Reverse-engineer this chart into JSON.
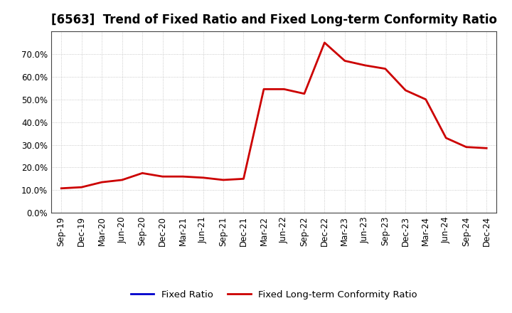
{
  "title": "[6563]  Trend of Fixed Ratio and Fixed Long-term Conformity Ratio",
  "x_labels": [
    "Sep-19",
    "Dec-19",
    "Mar-20",
    "Jun-20",
    "Sep-20",
    "Dec-20",
    "Mar-21",
    "Jun-21",
    "Sep-21",
    "Dec-21",
    "Mar-22",
    "Jun-22",
    "Sep-22",
    "Dec-22",
    "Mar-23",
    "Jun-23",
    "Sep-23",
    "Dec-23",
    "Mar-24",
    "Jun-24",
    "Sep-24",
    "Dec-24"
  ],
  "fixed_ratio": [
    null,
    null,
    null,
    null,
    null,
    null,
    null,
    null,
    null,
    null,
    null,
    null,
    null,
    null,
    null,
    null,
    null,
    null,
    null,
    null,
    null,
    null
  ],
  "fixed_lt_ratio": [
    10.8,
    11.3,
    13.5,
    14.5,
    17.5,
    16.0,
    16.0,
    15.5,
    14.5,
    15.0,
    54.5,
    54.5,
    52.5,
    75.0,
    67.0,
    65.0,
    63.5,
    54.0,
    50.0,
    33.0,
    29.0,
    28.5
  ],
  "fixed_ratio_color": "#0000cc",
  "fixed_lt_ratio_color": "#cc0000",
  "ylim": [
    0,
    80
  ],
  "yticks": [
    0.0,
    10.0,
    20.0,
    30.0,
    40.0,
    50.0,
    60.0,
    70.0
  ],
  "background_color": "#ffffff",
  "grid_color": "#bbbbbb",
  "legend_fixed_ratio": "Fixed Ratio",
  "legend_fixed_lt_ratio": "Fixed Long-term Conformity Ratio",
  "title_fontsize": 12,
  "axis_fontsize": 8.5,
  "legend_fontsize": 9.5
}
